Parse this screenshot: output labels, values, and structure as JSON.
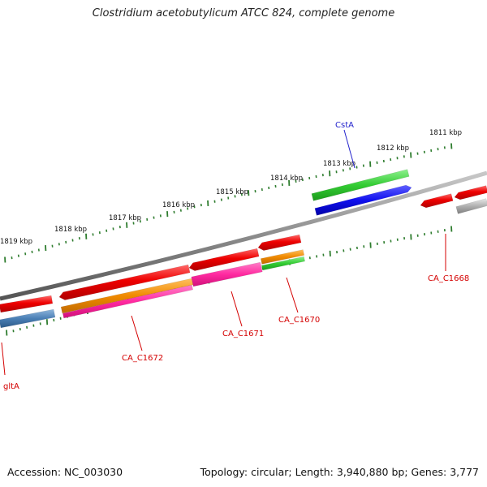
{
  "title": "Clostridium acetobutylicum ATCC 824, complete genome",
  "accession_text": "Accession: NC_003030",
  "topology_text": "Topology: circular; Length: 3,940,880 bp; Genes: 3,777",
  "scale_labels": [
    "1811 kbp",
    "1812 kbp",
    "1813 kbp",
    "1814 kbp",
    "1815 kbp",
    "1816 kbp",
    "1817 kbp",
    "1818 kbp",
    "1819 kbp"
  ],
  "gene_labels": [
    "CstA",
    "CA_C1668",
    "CA_C1670",
    "CA_C1671",
    "CA_C1672",
    "gltA"
  ],
  "colors": {
    "backbone": "#8c8c8c",
    "ticks": "#2f7d2f",
    "red_gene": "#ee0000",
    "orange_gene": "#f08a00",
    "pink_gene": "#ff2aa0",
    "green_gene": "#33cc33",
    "blue_gene": "#1010ee",
    "steelblue_gene": "#4a7fb5",
    "grey_gene": "#b0b0b0",
    "label_red": "#d40000",
    "label_blue": "#2222cc"
  }
}
